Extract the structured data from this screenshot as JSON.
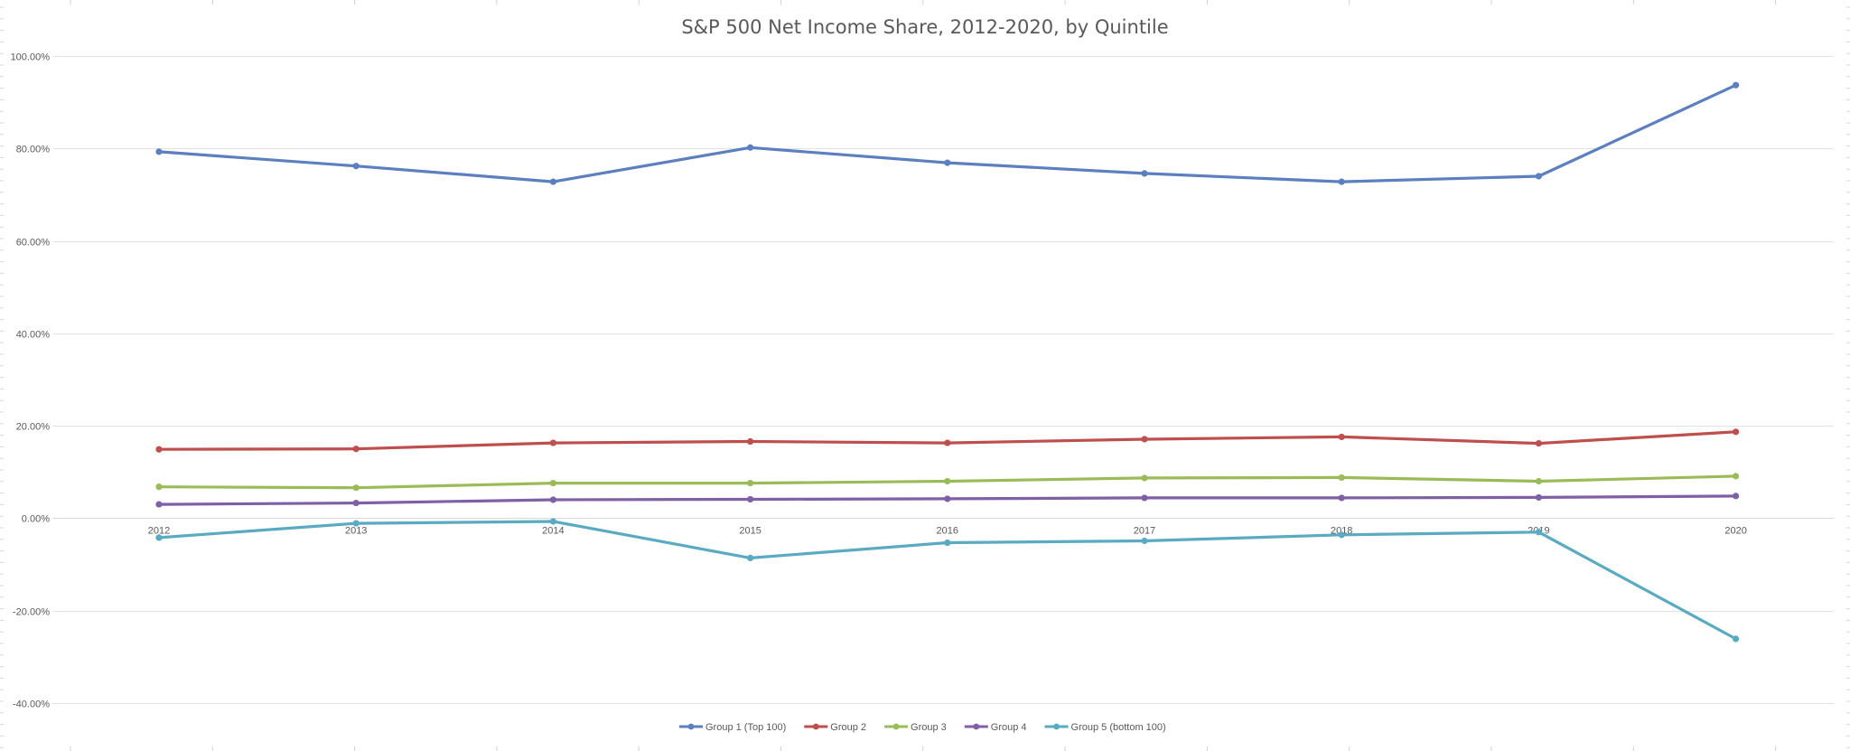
{
  "chart_data": {
    "type": "line",
    "title": "S&P 500 Net Income Share, 2012-2020, by Quintile",
    "xlabel": "",
    "ylabel": "",
    "ylim": [
      -40,
      100
    ],
    "ytick_step": 20,
    "ytick_labels": [
      "-40.00%",
      "-20.00%",
      "0.00%",
      "20.00%",
      "40.00%",
      "60.00%",
      "80.00%",
      "100.00%"
    ],
    "categories": [
      "2012",
      "2013",
      "2014",
      "2015",
      "2016",
      "2017",
      "2018",
      "2019",
      "2020"
    ],
    "grid": true,
    "legend_position": "bottom",
    "series": [
      {
        "name": "Group 1 (Top 100)",
        "color": "#5b7fbf",
        "values": [
          79.3,
          76.2,
          72.8,
          80.2,
          76.9,
          74.6,
          72.8,
          74.0,
          93.7
        ]
      },
      {
        "name": "Group 2",
        "color": "#be4f4c",
        "values": [
          14.9,
          15.0,
          16.3,
          16.6,
          16.3,
          17.1,
          17.6,
          16.2,
          18.7
        ]
      },
      {
        "name": "Group 3",
        "color": "#9bbb59",
        "values": [
          6.8,
          6.6,
          7.6,
          7.6,
          8.0,
          8.7,
          8.8,
          8.0,
          9.1
        ]
      },
      {
        "name": "Group 4",
        "color": "#7f5fa6",
        "values": [
          3.0,
          3.3,
          4.0,
          4.1,
          4.2,
          4.4,
          4.4,
          4.5,
          4.8
        ]
      },
      {
        "name": "Group 5 (bottom 100)",
        "color": "#5aaac2",
        "values": [
          -4.2,
          -1.1,
          -0.7,
          -8.6,
          -5.3,
          -4.9,
          -3.6,
          -3.0,
          -26.1
        ]
      }
    ]
  }
}
